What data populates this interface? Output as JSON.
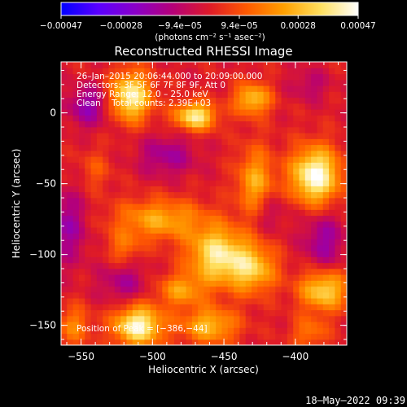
{
  "chart_data": {
    "type": "heatmap",
    "title": "Reconstructed RHESSI Image",
    "xlabel": "Heliocentric X (arcsec)",
    "ylabel": "Heliocentric Y (arcsec)",
    "xlim": [
      -564,
      -364
    ],
    "ylim": [
      -164,
      36
    ],
    "xticks": [
      -550,
      -500,
      -450,
      -400
    ],
    "yticks": [
      0,
      -50,
      -100,
      -150
    ],
    "xtick_labels": [
      "−550",
      "−500",
      "−450",
      "−400"
    ],
    "ytick_labels": [
      "0",
      "−50",
      "−100",
      "−150"
    ],
    "colorbar": {
      "range": [
        -0.00047,
        0.00047
      ],
      "ticks": [
        -0.00047,
        -0.00028,
        -9.4e-05,
        9.4e-05,
        0.00028,
        0.00047
      ],
      "tick_labels": [
        "−0.00047",
        "−0.00028",
        "−9.4e−05",
        "9.4e−05",
        "0.00028",
        "0.00047"
      ],
      "units": "(photons cm⁻² s⁻¹ asec⁻²)",
      "colors": [
        "#0000ff",
        "#5a00ff",
        "#8a00c8",
        "#b50078",
        "#de1a28",
        "#ff5a00",
        "#ffa000",
        "#ffe060",
        "#ffffff"
      ]
    },
    "annotations": [
      "26–Jan–2015 20:06:44.000 to 20:09:00.000",
      "Detectors: 3F 5F 6F 7F 8F 9F, Att 0",
      "Energy Range: 12.0 – 25.0 keV",
      "Clean    Total counts: 2.39E+03"
    ],
    "peak_label": "Position of Peak = [−386,−44]",
    "peak": [
      -386,
      -44
    ],
    "sources": [
      {
        "x": -515,
        "y": 12,
        "sx": 10,
        "sy": 12,
        "v": 0.00042
      },
      {
        "x": -470,
        "y": -2,
        "sx": 10,
        "sy": 7,
        "v": 0.0004
      },
      {
        "x": -430,
        "y": 10,
        "sx": 9,
        "sy": 8,
        "v": 0.0003
      },
      {
        "x": -386,
        "y": -44,
        "sx": 12,
        "sy": 14,
        "v": 0.00047
      },
      {
        "x": -428,
        "y": -50,
        "sx": 9,
        "sy": 18,
        "v": 0.00026
      },
      {
        "x": -495,
        "y": -75,
        "sx": 22,
        "sy": 10,
        "v": 0.00025
      },
      {
        "x": -455,
        "y": -100,
        "sx": 14,
        "sy": 14,
        "v": 0.00038
      },
      {
        "x": -430,
        "y": -110,
        "sx": 12,
        "sy": 12,
        "v": 0.0003
      },
      {
        "x": -520,
        "y": -95,
        "sx": 8,
        "sy": 8,
        "v": 0.00014
      },
      {
        "x": -380,
        "y": -125,
        "sx": 12,
        "sy": 10,
        "v": 0.00034
      },
      {
        "x": -480,
        "y": -125,
        "sx": 12,
        "sy": 8,
        "v": 0.00022
      },
      {
        "x": -510,
        "y": -150,
        "sx": 12,
        "sy": 10,
        "v": 0.00044
      },
      {
        "x": -460,
        "y": -150,
        "sx": 14,
        "sy": 9,
        "v": 0.00028
      },
      {
        "x": -555,
        "y": -150,
        "sx": 8,
        "sy": 10,
        "v": 0.00018
      },
      {
        "x": -540,
        "y": -40,
        "sx": 8,
        "sy": 10,
        "v": 0.0001
      },
      {
        "x": -390,
        "y": -155,
        "sx": 9,
        "sy": 8,
        "v": 0.00016
      },
      {
        "x": -545,
        "y": 5,
        "sx": 10,
        "sy": 10,
        "v": -0.0002
      },
      {
        "x": -560,
        "y": -80,
        "sx": 10,
        "sy": 18,
        "v": -0.00018
      },
      {
        "x": -490,
        "y": -30,
        "sx": 14,
        "sy": 10,
        "v": -0.00016
      },
      {
        "x": -420,
        "y": -70,
        "sx": 10,
        "sy": 10,
        "v": -0.00012
      },
      {
        "x": -380,
        "y": -90,
        "sx": 10,
        "sy": 14,
        "v": -0.00018
      },
      {
        "x": -520,
        "y": -120,
        "sx": 12,
        "sy": 10,
        "v": -0.00014
      },
      {
        "x": -390,
        "y": 20,
        "sx": 10,
        "sy": 8,
        "v": -0.0001
      }
    ]
  },
  "timestamp": "18–May–2022 09:39"
}
